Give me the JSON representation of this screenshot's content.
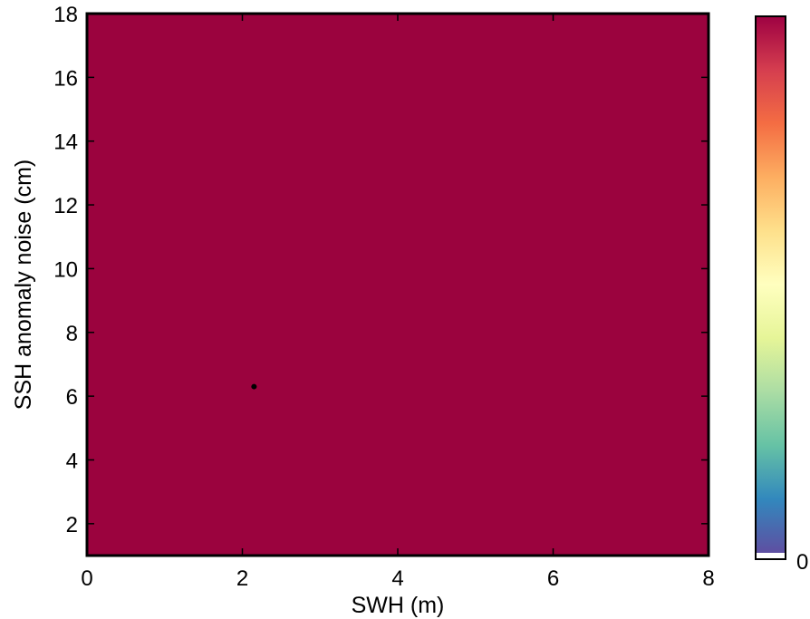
{
  "chart_data": {
    "type": "heatmap",
    "title": "",
    "xlabel": "SWH (m)",
    "ylabel": "SSH anomaly noise (cm)",
    "xlim": [
      0,
      8
    ],
    "ylim": [
      1,
      18
    ],
    "x_ticks": [
      "0",
      "2",
      "4",
      "6",
      "8"
    ],
    "y_ticks": [
      "2",
      "4",
      "6",
      "8",
      "10",
      "12",
      "14",
      "16",
      "18"
    ],
    "grid": false,
    "field_color": "#9b033e",
    "marker_point": {
      "x": 2.15,
      "y": 6.3
    },
    "colorbar": {
      "colormap": "spectral (purple-blue-green-yellow-orange-red)",
      "label": "",
      "tick_labels": [
        "0"
      ],
      "colors": [
        "#ffffff",
        "#5e4fa2",
        "#3288bd",
        "#66c2a5",
        "#abdda4",
        "#e6f598",
        "#ffffbf",
        "#fee08b",
        "#fdae61",
        "#f46d43",
        "#d53e4f",
        "#9e0142"
      ]
    }
  }
}
